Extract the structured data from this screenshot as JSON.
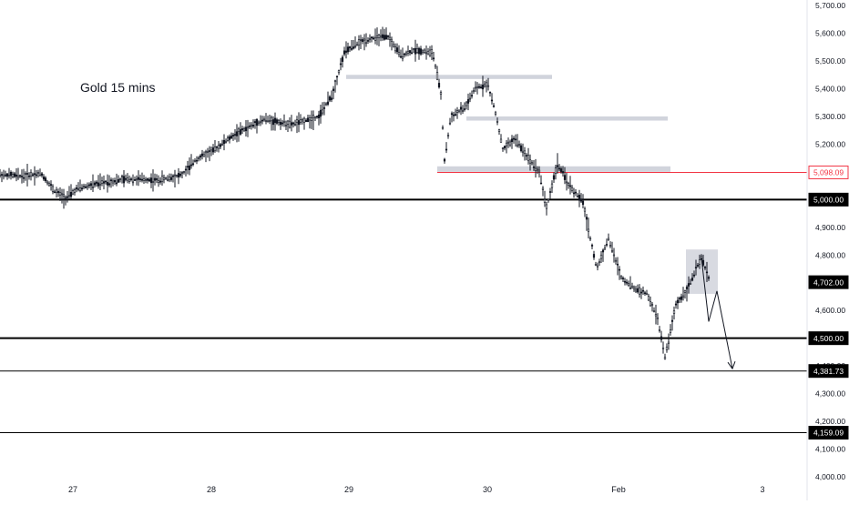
{
  "chart_data": {
    "type": "candlestick",
    "annotation": "Gold 15 mins",
    "x_ticks": [
      "27",
      "28",
      "29",
      "30",
      "Feb",
      "3"
    ],
    "ylim": [
      4000,
      5720
    ],
    "y_ticks": [
      4000,
      4100,
      4200,
      4300,
      4400,
      4500,
      4600,
      4700,
      4800,
      4900,
      5000,
      5100,
      5200,
      5300,
      5400,
      5500,
      5600,
      5700
    ],
    "y_tick_labels": [
      "4,000.00",
      "4,100.00",
      "4,200.00",
      "4,300.00",
      "4,400.00",
      "4,500.00",
      "4,600.00",
      "4,700.00",
      "4,800.00",
      "4,900.00",
      "5,000.00",
      "5,100.00",
      "5,200.00",
      "5,300.00",
      "5,400.00",
      "5,500.00",
      "5,600.00",
      "5,700.00"
    ],
    "price_path": [
      {
        "x": 0,
        "y": 5090
      },
      {
        "x": 25,
        "y": 5085
      },
      {
        "x": 45,
        "y": 5095
      },
      {
        "x": 60,
        "y": 5030
      },
      {
        "x": 72,
        "y": 5005
      },
      {
        "x": 85,
        "y": 5040
      },
      {
        "x": 110,
        "y": 5060
      },
      {
        "x": 140,
        "y": 5075
      },
      {
        "x": 175,
        "y": 5070
      },
      {
        "x": 200,
        "y": 5090
      },
      {
        "x": 215,
        "y": 5145
      },
      {
        "x": 235,
        "y": 5180
      },
      {
        "x": 260,
        "y": 5240
      },
      {
        "x": 290,
        "y": 5290
      },
      {
        "x": 320,
        "y": 5270
      },
      {
        "x": 350,
        "y": 5300
      },
      {
        "x": 365,
        "y": 5380
      },
      {
        "x": 378,
        "y": 5530
      },
      {
        "x": 390,
        "y": 5560
      },
      {
        "x": 405,
        "y": 5580
      },
      {
        "x": 425,
        "y": 5590
      },
      {
        "x": 440,
        "y": 5520
      },
      {
        "x": 455,
        "y": 5540
      },
      {
        "x": 475,
        "y": 5530
      },
      {
        "x": 484,
        "y": 5380
      },
      {
        "x": 488,
        "y": 5140
      },
      {
        "x": 495,
        "y": 5300
      },
      {
        "x": 510,
        "y": 5330
      },
      {
        "x": 522,
        "y": 5400
      },
      {
        "x": 535,
        "y": 5420
      },
      {
        "x": 545,
        "y": 5300
      },
      {
        "x": 552,
        "y": 5180
      },
      {
        "x": 565,
        "y": 5220
      },
      {
        "x": 580,
        "y": 5150
      },
      {
        "x": 592,
        "y": 5100
      },
      {
        "x": 600,
        "y": 4970
      },
      {
        "x": 612,
        "y": 5130
      },
      {
        "x": 625,
        "y": 5050
      },
      {
        "x": 640,
        "y": 4990
      },
      {
        "x": 655,
        "y": 4750
      },
      {
        "x": 668,
        "y": 4860
      },
      {
        "x": 682,
        "y": 4720
      },
      {
        "x": 696,
        "y": 4680
      },
      {
        "x": 710,
        "y": 4660
      },
      {
        "x": 722,
        "y": 4570
      },
      {
        "x": 730,
        "y": 4430
      },
      {
        "x": 742,
        "y": 4620
      },
      {
        "x": 755,
        "y": 4680
      },
      {
        "x": 770,
        "y": 4790
      },
      {
        "x": 778,
        "y": 4720
      }
    ],
    "key_levels": [
      {
        "value": 5098.09,
        "label": "5,098.09",
        "color": "#f23645",
        "width": "thin"
      },
      {
        "value": 5000,
        "label": "5,000.00",
        "color": "#000000",
        "width": "thick"
      },
      {
        "value": 4702,
        "label": "4,702.00",
        "color": "#000000",
        "width": "none"
      },
      {
        "value": 4500,
        "label": "4,500.00",
        "color": "#000000",
        "width": "thick"
      },
      {
        "value": 4381.73,
        "label": "4,381.73",
        "color": "#000000",
        "width": "thin"
      },
      {
        "value": 4159.09,
        "label": "4,159.09",
        "color": "#000000",
        "width": "thin"
      }
    ],
    "zones": [
      {
        "name": "resistance-zone-1",
        "y_top": 5450,
        "y_bottom": 5435
      },
      {
        "name": "resistance-zone-2",
        "y_top": 5300,
        "y_bottom": 5285
      },
      {
        "name": "resistance-zone-3",
        "y_top": 5120,
        "y_bottom": 5100
      },
      {
        "name": "current-box",
        "y_top": 4820,
        "y_bottom": 4660
      }
    ],
    "projection": [
      {
        "x": 778,
        "y": 4720
      },
      {
        "x": 792,
        "y": 4680
      },
      {
        "x": 806,
        "y": 4400
      }
    ],
    "colors": {
      "candles": "#131722",
      "zones": "#d1d4dc",
      "red_line": "#f23645",
      "axis_text": "#131722"
    }
  }
}
